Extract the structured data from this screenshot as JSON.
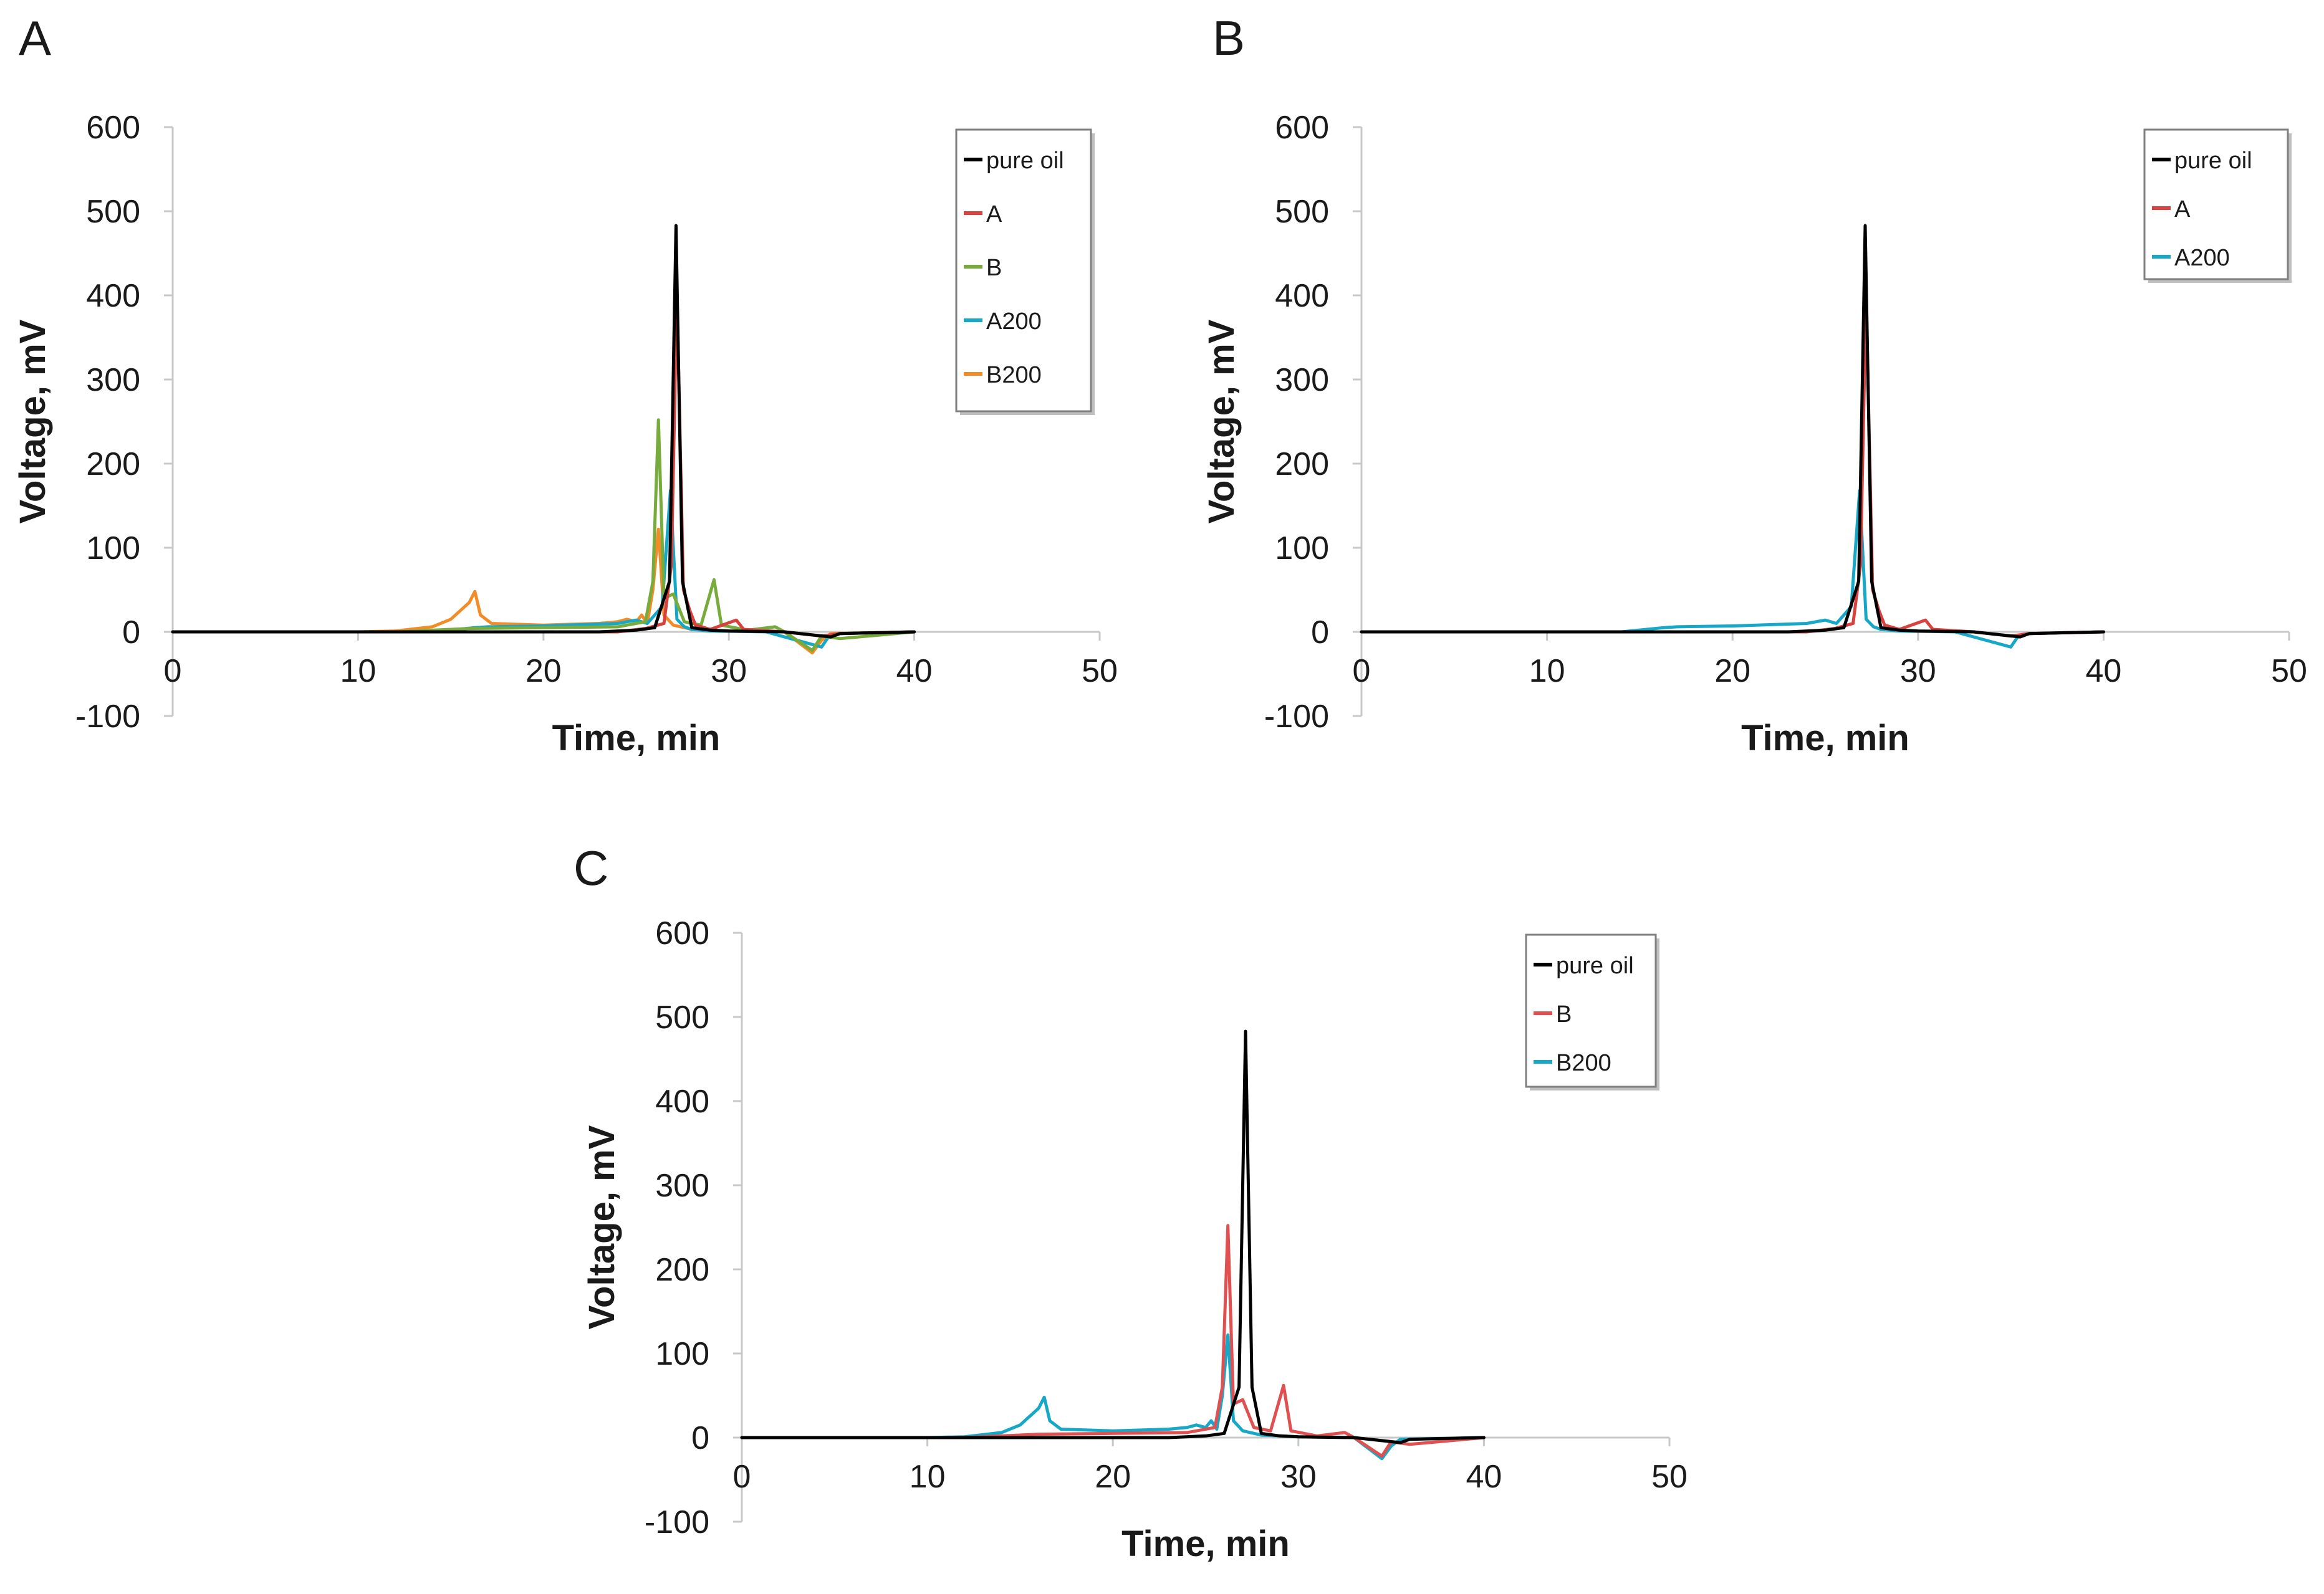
{
  "colors": {
    "pure oil": "#000000",
    "A": "#d9413f",
    "B_green": "#77ac3d",
    "B_red": "#e05050",
    "A200": "#17a8c8",
    "B200_orange": "#f28c28",
    "B200_cyan": "#17a8c8",
    "axis": "#c8c8c8",
    "text": "#1a1a1a"
  },
  "chart_data": [
    {
      "type": "line",
      "panel_label": "A",
      "xlabel": "Time, min",
      "ylabel": "Voltage, mV",
      "xlim": [
        0,
        50
      ],
      "ylim": [
        -100,
        600
      ],
      "x_ticks": [
        "0",
        "10",
        "20",
        "30",
        "40",
        "50"
      ],
      "y_ticks": [
        "600",
        "500",
        "400",
        "300",
        "200",
        "100",
        "0",
        "-100"
      ],
      "legend": [
        "pure oil",
        "A",
        "B",
        "A200",
        "B200"
      ],
      "legend_position": "top-right",
      "series": [
        {
          "name": "pure oil",
          "color": "#000000",
          "points": [
            [
              0,
              0
            ],
            [
              23,
              0
            ],
            [
              25,
              2
            ],
            [
              26,
              5
            ],
            [
              26.8,
              60
            ],
            [
              27.15,
              483
            ],
            [
              27.5,
              60
            ],
            [
              28,
              5
            ],
            [
              29,
              2
            ],
            [
              30,
              1
            ],
            [
              33,
              0
            ],
            [
              35.5,
              -6
            ],
            [
              36,
              -2
            ],
            [
              40,
              0
            ]
          ]
        },
        {
          "name": "A",
          "color": "#d9413f",
          "points": [
            [
              0,
              0
            ],
            [
              24,
              0
            ],
            [
              25.5,
              4
            ],
            [
              26.5,
              10
            ],
            [
              26.9,
              80
            ],
            [
              27.2,
              402
            ],
            [
              27.55,
              50
            ],
            [
              27.9,
              25
            ],
            [
              28.2,
              8
            ],
            [
              29,
              3
            ],
            [
              30.4,
              14
            ],
            [
              30.8,
              3
            ],
            [
              33,
              0
            ],
            [
              35,
              -5
            ],
            [
              36,
              -2
            ],
            [
              40,
              0
            ]
          ]
        },
        {
          "name": "B",
          "color": "#77ac3d",
          "points": [
            [
              0,
              0
            ],
            [
              12,
              0
            ],
            [
              16,
              4
            ],
            [
              20,
              5
            ],
            [
              24,
              6
            ],
            [
              25.5,
              12
            ],
            [
              25.9,
              60
            ],
            [
              26.2,
              252
            ],
            [
              26.5,
              40
            ],
            [
              27,
              45
            ],
            [
              27.6,
              12
            ],
            [
              28.5,
              8
            ],
            [
              29.2,
              62
            ],
            [
              29.6,
              8
            ],
            [
              31,
              2
            ],
            [
              32.5,
              6
            ],
            [
              33,
              0
            ],
            [
              34.5,
              -22
            ],
            [
              35,
              -5
            ],
            [
              36,
              -8
            ],
            [
              40,
              0
            ]
          ]
        },
        {
          "name": "A200",
          "color": "#17a8c8",
          "points": [
            [
              0,
              0
            ],
            [
              14,
              0
            ],
            [
              16.3,
              5
            ],
            [
              17,
              6
            ],
            [
              20,
              7
            ],
            [
              24,
              10
            ],
            [
              25,
              14
            ],
            [
              25.6,
              10
            ],
            [
              26,
              20
            ],
            [
              26.4,
              30
            ],
            [
              26.85,
              168
            ],
            [
              27.2,
              15
            ],
            [
              27.6,
              6
            ],
            [
              28,
              3
            ],
            [
              29,
              1
            ],
            [
              32,
              0
            ],
            [
              35,
              -18
            ],
            [
              35.4,
              -5
            ],
            [
              36,
              -2
            ],
            [
              40,
              0
            ]
          ]
        },
        {
          "name": "B200",
          "color": "#f28c28",
          "points": [
            [
              0,
              0
            ],
            [
              10,
              0
            ],
            [
              12,
              1
            ],
            [
              14,
              6
            ],
            [
              15,
              15
            ],
            [
              16,
              35
            ],
            [
              16.3,
              48
            ],
            [
              16.6,
              20
            ],
            [
              17.2,
              10
            ],
            [
              20,
              8
            ],
            [
              23,
              10
            ],
            [
              24,
              12
            ],
            [
              24.5,
              15
            ],
            [
              25,
              12
            ],
            [
              25.3,
              20
            ],
            [
              25.6,
              10
            ],
            [
              25.9,
              50
            ],
            [
              26.2,
              122
            ],
            [
              26.5,
              20
            ],
            [
              27,
              8
            ],
            [
              28,
              3
            ],
            [
              30,
              1
            ],
            [
              33,
              0
            ],
            [
              34.5,
              -25
            ],
            [
              35,
              -10
            ],
            [
              35.5,
              -2
            ],
            [
              40,
              0
            ]
          ]
        }
      ]
    },
    {
      "type": "line",
      "panel_label": "B",
      "xlabel": "Time, min",
      "ylabel": "Voltage, mV",
      "xlim": [
        0,
        50
      ],
      "ylim": [
        -100,
        600
      ],
      "x_ticks": [
        "0",
        "10",
        "20",
        "30",
        "40",
        "50"
      ],
      "y_ticks": [
        "600",
        "500",
        "400",
        "300",
        "200",
        "100",
        "0",
        "-100"
      ],
      "legend": [
        "pure oil",
        "A",
        "A200"
      ],
      "legend_position": "top-right",
      "series": [
        {
          "name": "pure oil",
          "color": "#000000",
          "points": [
            [
              0,
              0
            ],
            [
              23,
              0
            ],
            [
              25,
              2
            ],
            [
              26,
              5
            ],
            [
              26.8,
              60
            ],
            [
              27.15,
              483
            ],
            [
              27.5,
              60
            ],
            [
              28,
              5
            ],
            [
              29,
              2
            ],
            [
              30,
              1
            ],
            [
              33,
              0
            ],
            [
              35.5,
              -6
            ],
            [
              36,
              -2
            ],
            [
              40,
              0
            ]
          ]
        },
        {
          "name": "A",
          "color": "#d9413f",
          "points": [
            [
              0,
              0
            ],
            [
              24,
              0
            ],
            [
              25.5,
              4
            ],
            [
              26.5,
              10
            ],
            [
              26.9,
              80
            ],
            [
              27.2,
              402
            ],
            [
              27.55,
              50
            ],
            [
              27.9,
              25
            ],
            [
              28.2,
              8
            ],
            [
              29,
              3
            ],
            [
              30.4,
              14
            ],
            [
              30.8,
              3
            ],
            [
              33,
              0
            ],
            [
              35,
              -5
            ],
            [
              36,
              -2
            ],
            [
              40,
              0
            ]
          ]
        },
        {
          "name": "A200",
          "color": "#17a8c8",
          "points": [
            [
              0,
              0
            ],
            [
              14,
              0
            ],
            [
              16.3,
              5
            ],
            [
              17,
              6
            ],
            [
              20,
              7
            ],
            [
              24,
              10
            ],
            [
              25,
              14
            ],
            [
              25.6,
              10
            ],
            [
              26,
              20
            ],
            [
              26.4,
              30
            ],
            [
              26.85,
              168
            ],
            [
              27.2,
              15
            ],
            [
              27.6,
              6
            ],
            [
              28,
              3
            ],
            [
              29,
              1
            ],
            [
              32,
              0
            ],
            [
              35,
              -18
            ],
            [
              35.4,
              -5
            ],
            [
              36,
              -2
            ],
            [
              40,
              0
            ]
          ]
        }
      ]
    },
    {
      "type": "line",
      "panel_label": "C",
      "xlabel": "Time, min",
      "ylabel": "Voltage, mV",
      "xlim": [
        0,
        50
      ],
      "ylim": [
        -100,
        600
      ],
      "x_ticks": [
        "0",
        "10",
        "20",
        "30",
        "40",
        "50"
      ],
      "y_ticks": [
        "600",
        "500",
        "400",
        "300",
        "200",
        "100",
        "0",
        "-100"
      ],
      "legend": [
        "pure oil",
        "B",
        "B200"
      ],
      "legend_position": "top-right",
      "series": [
        {
          "name": "pure oil",
          "color": "#000000",
          "points": [
            [
              0,
              0
            ],
            [
              23,
              0
            ],
            [
              25,
              2
            ],
            [
              26,
              5
            ],
            [
              26.8,
              60
            ],
            [
              27.15,
              483
            ],
            [
              27.5,
              60
            ],
            [
              28,
              5
            ],
            [
              29,
              2
            ],
            [
              30,
              1
            ],
            [
              33,
              0
            ],
            [
              35.5,
              -6
            ],
            [
              36,
              -2
            ],
            [
              40,
              0
            ]
          ]
        },
        {
          "name": "B",
          "color": "#e05050",
          "points": [
            [
              0,
              0
            ],
            [
              12,
              0
            ],
            [
              16,
              4
            ],
            [
              20,
              5
            ],
            [
              24,
              6
            ],
            [
              25.5,
              12
            ],
            [
              25.9,
              60
            ],
            [
              26.2,
              252
            ],
            [
              26.5,
              40
            ],
            [
              27,
              45
            ],
            [
              27.6,
              12
            ],
            [
              28.5,
              8
            ],
            [
              29.2,
              62
            ],
            [
              29.6,
              8
            ],
            [
              31,
              2
            ],
            [
              32.5,
              6
            ],
            [
              33,
              0
            ],
            [
              34.5,
              -22
            ],
            [
              35,
              -5
            ],
            [
              36,
              -8
            ],
            [
              40,
              0
            ]
          ]
        },
        {
          "name": "B200",
          "color": "#17a8c8",
          "points": [
            [
              0,
              0
            ],
            [
              10,
              0
            ],
            [
              12,
              1
            ],
            [
              14,
              6
            ],
            [
              15,
              15
            ],
            [
              16,
              35
            ],
            [
              16.3,
              48
            ],
            [
              16.6,
              20
            ],
            [
              17.2,
              10
            ],
            [
              20,
              8
            ],
            [
              23,
              10
            ],
            [
              24,
              12
            ],
            [
              24.5,
              15
            ],
            [
              25,
              12
            ],
            [
              25.3,
              20
            ],
            [
              25.6,
              10
            ],
            [
              25.9,
              50
            ],
            [
              26.2,
              122
            ],
            [
              26.5,
              20
            ],
            [
              27,
              8
            ],
            [
              28,
              3
            ],
            [
              30,
              1
            ],
            [
              33,
              0
            ],
            [
              34.5,
              -25
            ],
            [
              35,
              -10
            ],
            [
              35.5,
              -2
            ],
            [
              40,
              0
            ]
          ]
        }
      ]
    }
  ]
}
